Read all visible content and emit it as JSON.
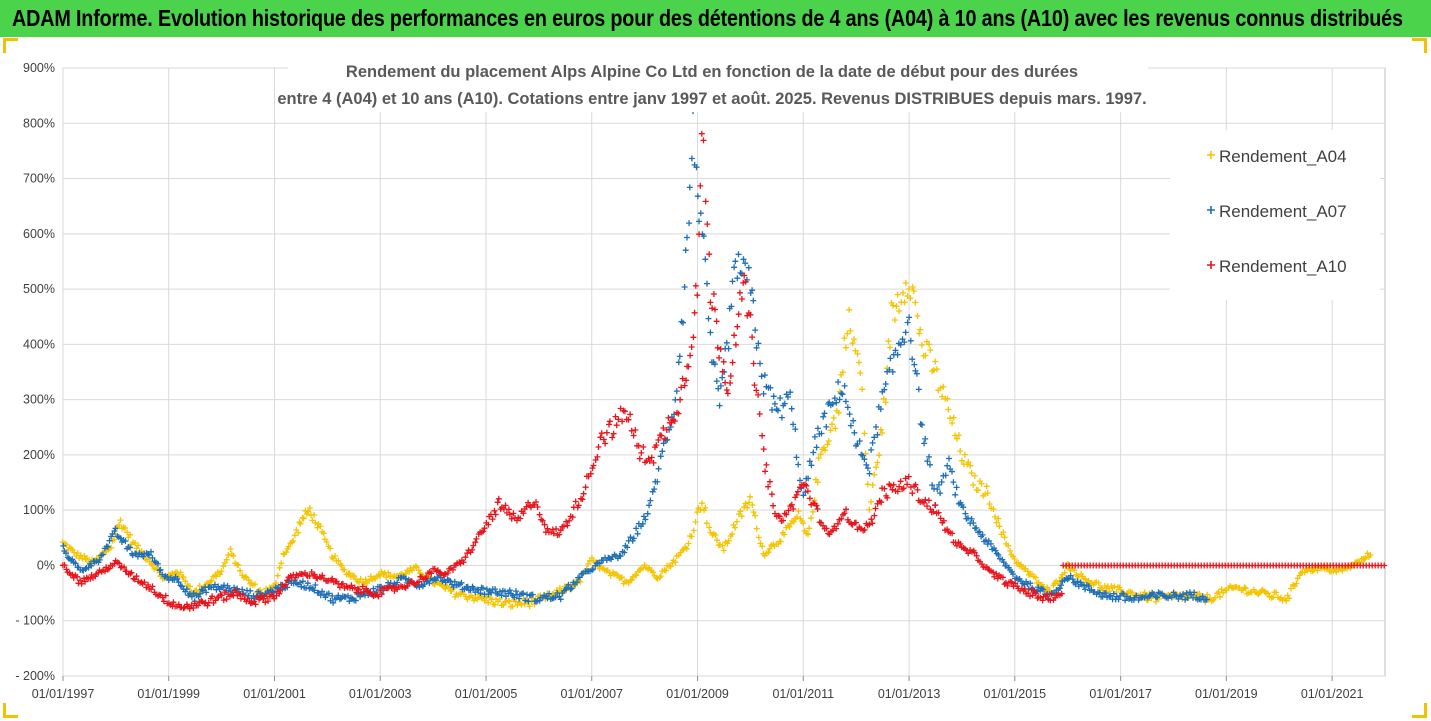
{
  "header": {
    "title": "ADAM Informe. Evolution historique des performances en euros pour des détentions de 4 ans (A04) à 10 ans (A10) avec les revenus connus distribués"
  },
  "colors": {
    "banner": "#4bd34b",
    "A04": "#f5c400",
    "A07": "#1f6fb8",
    "A10": "#e8141b",
    "grid": "#d9d9d9",
    "corner_marks": "#f2c200"
  },
  "chart_data": {
    "type": "scatter",
    "marker": "plus",
    "title_line1": "Rendement du placement Alps Alpine Co Ltd en fonction de la date de début pour des durées",
    "title_line2": "entre 4 (A04) et 10 ans (A10). Cotations entre janv 1997 et août. 2025. Revenus DISTRIBUES depuis mars. 1997.",
    "xlabel": "",
    "ylabel": "",
    "x_range": [
      "1997-01-01",
      "2022-01-01"
    ],
    "x_ticks": [
      "01/01/1997",
      "01/01/1999",
      "01/01/2001",
      "01/01/2003",
      "01/01/2005",
      "01/01/2007",
      "01/01/2009",
      "01/01/2011",
      "01/01/2013",
      "01/01/2015",
      "01/01/2017",
      "01/01/2019",
      "01/01/2021"
    ],
    "ylim": [
      -200,
      900
    ],
    "y_ticks": [
      "- 200%",
      "- 100%",
      "0%",
      "100%",
      "200%",
      "300%",
      "400%",
      "500%",
      "600%",
      "700%",
      "800%",
      "900%"
    ],
    "grid": true,
    "legend_position": "right",
    "series": [
      {
        "name": "Rendement_A04",
        "color": "#f5c400",
        "points": [
          [
            "1997-01-01",
            40
          ],
          [
            "1997-04-01",
            20
          ],
          [
            "1997-08-01",
            5
          ],
          [
            "1997-12-01",
            35
          ],
          [
            "1998-02-01",
            80
          ],
          [
            "1998-05-01",
            40
          ],
          [
            "1998-09-01",
            5
          ],
          [
            "1998-12-01",
            -25
          ],
          [
            "1999-03-01",
            -10
          ],
          [
            "1999-07-01",
            -50
          ],
          [
            "1999-10-01",
            -30
          ],
          [
            "2000-01-01",
            -10
          ],
          [
            "2000-03-01",
            25
          ],
          [
            "2000-06-01",
            -20
          ],
          [
            "2000-10-01",
            -50
          ],
          [
            "2001-01-01",
            -40
          ],
          [
            "2001-03-01",
            20
          ],
          [
            "2001-05-01",
            40
          ],
          [
            "2001-07-01",
            80
          ],
          [
            "2001-09-01",
            100
          ],
          [
            "2001-11-01",
            70
          ],
          [
            "2002-02-01",
            20
          ],
          [
            "2002-05-01",
            -10
          ],
          [
            "2002-09-01",
            -30
          ],
          [
            "2003-01-01",
            -15
          ],
          [
            "2003-05-01",
            -20
          ],
          [
            "2003-09-01",
            -5
          ],
          [
            "2004-01-01",
            -30
          ],
          [
            "2004-06-01",
            -50
          ],
          [
            "2004-12-01",
            -60
          ],
          [
            "2005-06-01",
            -70
          ],
          [
            "2005-12-01",
            -65
          ],
          [
            "2006-04-01",
            -55
          ],
          [
            "2006-10-01",
            -30
          ],
          [
            "2007-01-01",
            10
          ],
          [
            "2007-04-01",
            -10
          ],
          [
            "2007-09-01",
            -30
          ],
          [
            "2008-01-01",
            0
          ],
          [
            "2008-04-01",
            -20
          ],
          [
            "2008-08-01",
            10
          ],
          [
            "2008-11-01",
            40
          ],
          [
            "2009-02-01",
            120
          ],
          [
            "2009-04-01",
            60
          ],
          [
            "2009-07-01",
            30
          ],
          [
            "2009-10-01",
            80
          ],
          [
            "2010-01-01",
            120
          ],
          [
            "2010-04-01",
            20
          ],
          [
            "2010-08-01",
            50
          ],
          [
            "2010-12-01",
            90
          ],
          [
            "2011-02-01",
            50
          ],
          [
            "2011-05-01",
            200
          ],
          [
            "2011-09-01",
            280
          ],
          [
            "2011-11-01",
            450
          ],
          [
            "2012-02-01",
            350
          ],
          [
            "2012-04-01",
            100
          ],
          [
            "2012-07-01",
            250
          ],
          [
            "2012-09-01",
            450
          ],
          [
            "2013-01-01",
            530
          ],
          [
            "2013-04-01",
            400
          ],
          [
            "2013-07-01",
            350
          ],
          [
            "2013-10-01",
            280
          ],
          [
            "2014-01-01",
            200
          ],
          [
            "2014-04-01",
            150
          ],
          [
            "2014-07-01",
            130
          ],
          [
            "2014-10-01",
            60
          ],
          [
            "2015-01-01",
            10
          ],
          [
            "2015-05-01",
            -20
          ],
          [
            "2015-09-01",
            -50
          ],
          [
            "2016-01-01",
            0
          ],
          [
            "2016-04-01",
            -20
          ],
          [
            "2016-09-01",
            -40
          ],
          [
            "2017-03-01",
            -50
          ],
          [
            "2017-09-01",
            -60
          ],
          [
            "2018-03-01",
            -55
          ],
          [
            "2018-09-01",
            -60
          ],
          [
            "2019-03-01",
            -40
          ],
          [
            "2019-09-01",
            -50
          ],
          [
            "2020-03-01",
            -60
          ],
          [
            "2020-06-01",
            -10
          ],
          [
            "2020-10-01",
            -5
          ],
          [
            "2021-03-01",
            -10
          ],
          [
            "2021-08-01",
            10
          ],
          [
            "2021-10-01",
            25
          ]
        ]
      },
      {
        "name": "Rendement_A07",
        "color": "#1f6fb8",
        "points": [
          [
            "1997-01-01",
            30
          ],
          [
            "1997-05-01",
            -10
          ],
          [
            "1997-09-01",
            10
          ],
          [
            "1998-01-01",
            60
          ],
          [
            "1998-05-01",
            20
          ],
          [
            "1998-09-01",
            20
          ],
          [
            "1998-12-01",
            -20
          ],
          [
            "1999-03-01",
            -25
          ],
          [
            "1999-07-01",
            -60
          ],
          [
            "1999-10-01",
            -40
          ],
          [
            "2000-02-01",
            -40
          ],
          [
            "2000-06-01",
            -50
          ],
          [
            "2000-10-01",
            -55
          ],
          [
            "2001-02-01",
            -40
          ],
          [
            "2001-06-01",
            -30
          ],
          [
            "2001-10-01",
            -40
          ],
          [
            "2002-02-01",
            -60
          ],
          [
            "2002-06-01",
            -60
          ],
          [
            "2002-10-01",
            -50
          ],
          [
            "2003-02-01",
            -40
          ],
          [
            "2003-06-01",
            -25
          ],
          [
            "2003-10-01",
            -35
          ],
          [
            "2004-02-01",
            -20
          ],
          [
            "2004-06-01",
            -35
          ],
          [
            "2004-12-01",
            -45
          ],
          [
            "2005-06-01",
            -50
          ],
          [
            "2005-12-01",
            -60
          ],
          [
            "2006-06-01",
            -55
          ],
          [
            "2006-10-01",
            -25
          ],
          [
            "2007-01-01",
            -5
          ],
          [
            "2007-04-01",
            10
          ],
          [
            "2007-08-01",
            20
          ],
          [
            "2007-11-01",
            60
          ],
          [
            "2008-02-01",
            100
          ],
          [
            "2008-05-01",
            200
          ],
          [
            "2008-08-01",
            300
          ],
          [
            "2008-10-01",
            500
          ],
          [
            "2008-12-01",
            780
          ],
          [
            "2009-02-01",
            600
          ],
          [
            "2009-04-01",
            400
          ],
          [
            "2009-06-01",
            280
          ],
          [
            "2009-08-01",
            420
          ],
          [
            "2009-10-01",
            550
          ],
          [
            "2010-01-01",
            500
          ],
          [
            "2010-04-01",
            330
          ],
          [
            "2010-07-01",
            280
          ],
          [
            "2010-10-01",
            300
          ],
          [
            "2011-01-01",
            120
          ],
          [
            "2011-04-01",
            230
          ],
          [
            "2011-07-01",
            280
          ],
          [
            "2011-10-01",
            330
          ],
          [
            "2012-01-01",
            220
          ],
          [
            "2012-04-01",
            180
          ],
          [
            "2012-07-01",
            300
          ],
          [
            "2012-10-01",
            380
          ],
          [
            "2013-01-01",
            450
          ],
          [
            "2013-04-01",
            250
          ],
          [
            "2013-07-01",
            120
          ],
          [
            "2013-10-01",
            180
          ],
          [
            "2014-01-01",
            100
          ],
          [
            "2014-05-01",
            60
          ],
          [
            "2014-09-01",
            20
          ],
          [
            "2015-01-01",
            -20
          ],
          [
            "2015-05-01",
            -40
          ],
          [
            "2015-09-01",
            -55
          ],
          [
            "2016-01-01",
            -20
          ],
          [
            "2016-05-01",
            -40
          ],
          [
            "2016-10-01",
            -55
          ],
          [
            "2017-04-01",
            -60
          ],
          [
            "2017-10-01",
            -55
          ],
          [
            "2018-04-01",
            -55
          ],
          [
            "2018-09-01",
            -55
          ]
        ]
      },
      {
        "name": "Rendement_A10",
        "color": "#e8141b",
        "points": [
          [
            "1997-01-01",
            0
          ],
          [
            "1997-05-01",
            -30
          ],
          [
            "1997-09-01",
            -15
          ],
          [
            "1998-01-01",
            5
          ],
          [
            "1998-05-01",
            -20
          ],
          [
            "1998-09-01",
            -40
          ],
          [
            "1998-12-01",
            -60
          ],
          [
            "1999-04-01",
            -75
          ],
          [
            "1999-08-01",
            -70
          ],
          [
            "1999-12-01",
            -60
          ],
          [
            "2000-04-01",
            -50
          ],
          [
            "2000-08-01",
            -65
          ],
          [
            "2001-01-01",
            -55
          ],
          [
            "2001-05-01",
            -20
          ],
          [
            "2001-09-01",
            -15
          ],
          [
            "2002-01-01",
            -25
          ],
          [
            "2002-05-01",
            -40
          ],
          [
            "2002-09-01",
            -45
          ],
          [
            "2003-01-01",
            -50
          ],
          [
            "2003-05-01",
            -40
          ],
          [
            "2003-09-01",
            -30
          ],
          [
            "2004-01-01",
            -10
          ],
          [
            "2004-04-01",
            -15
          ],
          [
            "2004-08-01",
            10
          ],
          [
            "2004-12-01",
            60
          ],
          [
            "2005-04-01",
            110
          ],
          [
            "2005-08-01",
            80
          ],
          [
            "2005-12-01",
            120
          ],
          [
            "2006-03-01",
            60
          ],
          [
            "2006-06-01",
            60
          ],
          [
            "2006-09-01",
            100
          ],
          [
            "2006-12-01",
            150
          ],
          [
            "2007-03-01",
            230
          ],
          [
            "2007-06-01",
            250
          ],
          [
            "2007-09-01",
            280
          ],
          [
            "2007-12-01",
            200
          ],
          [
            "2008-03-01",
            200
          ],
          [
            "2008-06-01",
            250
          ],
          [
            "2008-09-01",
            300
          ],
          [
            "2008-11-01",
            380
          ],
          [
            "2009-01-01",
            500
          ],
          [
            "2009-02-01",
            780
          ],
          [
            "2009-04-01",
            500
          ],
          [
            "2009-06-01",
            400
          ],
          [
            "2009-08-01",
            320
          ],
          [
            "2009-10-01",
            450
          ],
          [
            "2009-12-01",
            500
          ],
          [
            "2010-02-01",
            350
          ],
          [
            "2010-04-01",
            200
          ],
          [
            "2010-07-01",
            80
          ],
          [
            "2010-10-01",
            100
          ],
          [
            "2011-01-01",
            150
          ],
          [
            "2011-04-01",
            100
          ],
          [
            "2011-07-01",
            50
          ],
          [
            "2011-10-01",
            100
          ],
          [
            "2012-01-01",
            70
          ],
          [
            "2012-04-01",
            70
          ],
          [
            "2012-07-01",
            130
          ],
          [
            "2012-10-01",
            140
          ],
          [
            "2013-01-01",
            150
          ],
          [
            "2013-04-01",
            120
          ],
          [
            "2013-07-01",
            100
          ],
          [
            "2013-10-01",
            60
          ],
          [
            "2014-01-01",
            30
          ],
          [
            "2014-04-01",
            20
          ],
          [
            "2014-07-01",
            -10
          ],
          [
            "2014-11-01",
            -30
          ],
          [
            "2015-03-01",
            -45
          ],
          [
            "2015-08-01",
            -60
          ],
          [
            "2015-12-01",
            -50
          ]
        ]
      },
      {
        "name": "Rendement_A10",
        "color": "#e8141b",
        "flat_segment": true,
        "from": "2015-12-01",
        "to": "2022-01-01",
        "value": 0
      }
    ]
  }
}
